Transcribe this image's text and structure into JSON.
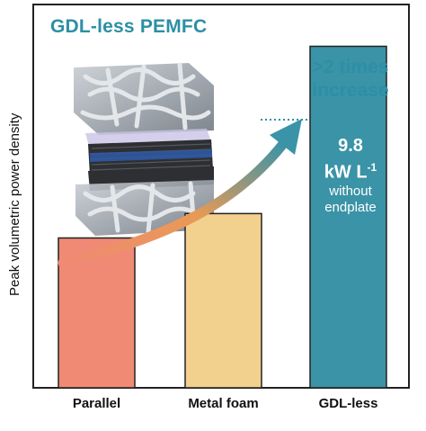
{
  "title": "GDL-less PEMFC",
  "annotation": {
    "line1": ">2 times",
    "line2": "increase"
  },
  "bar_annotation": {
    "value": "9.8",
    "unit": "kW L",
    "superscript": "-1",
    "note1": "without",
    "note2": "endplate"
  },
  "colors": {
    "accent": "#2c8fa6",
    "bar_parallel": "#f08a74",
    "bar_metal_foam": "#f2d08e",
    "bar_gdl_less": "#3a93a7",
    "axis": "#222222"
  },
  "chart_data": {
    "type": "bar",
    "ylabel": "Peak volumetric power density",
    "xlabel": "",
    "categories": [
      "Parallel",
      "Metal foam",
      "GDL-less"
    ],
    "values": [
      4.3,
      5.0,
      9.8
    ],
    "ylim": [
      0,
      11.0
    ],
    "grid": false,
    "legend": "none"
  }
}
